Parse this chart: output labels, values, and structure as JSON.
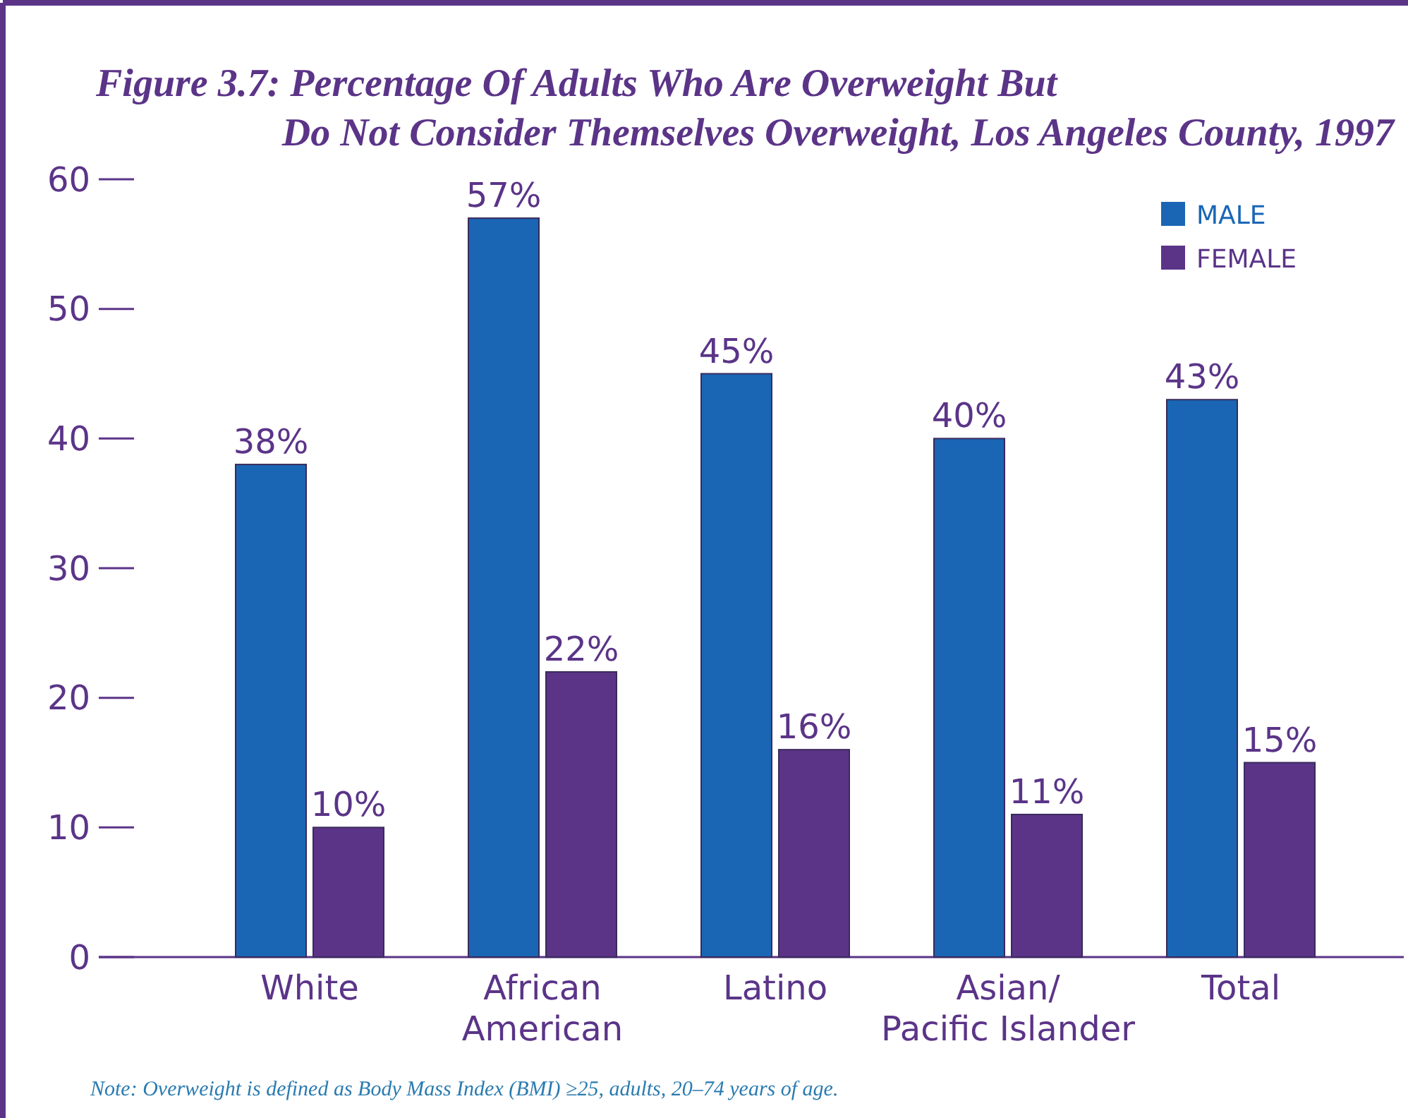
{
  "chart_data": {
    "type": "bar",
    "title": "Figure 3.7: Percentage Of Adults Who Are Overweight But Do Not Consider Themselves Overweight, Los Angeles County, 1997",
    "categories": [
      "White",
      "African American",
      "Latino",
      "Asian/ Pacific Islander",
      "Total"
    ],
    "series": [
      {
        "name": "MALE",
        "color": "#1a66b5",
        "values": [
          38,
          57,
          45,
          40,
          43
        ],
        "value_labels": [
          "38%",
          "57%",
          "45%",
          "40%",
          "43%"
        ]
      },
      {
        "name": "FEMALE",
        "color": "#5b3488",
        "values": [
          10,
          22,
          16,
          11,
          15
        ],
        "value_labels": [
          "10%",
          "22%",
          "16%",
          "11%",
          "15%"
        ]
      }
    ],
    "ylim": [
      0,
      60
    ],
    "yticks": [
      0,
      10,
      20,
      30,
      40,
      50,
      60
    ],
    "grid": false,
    "legend": "top right",
    "annotations": [
      "Note: Overweight is defined as Body Mass Index (BMI) ≥25, adults, 20–74 years of age."
    ]
  }
}
